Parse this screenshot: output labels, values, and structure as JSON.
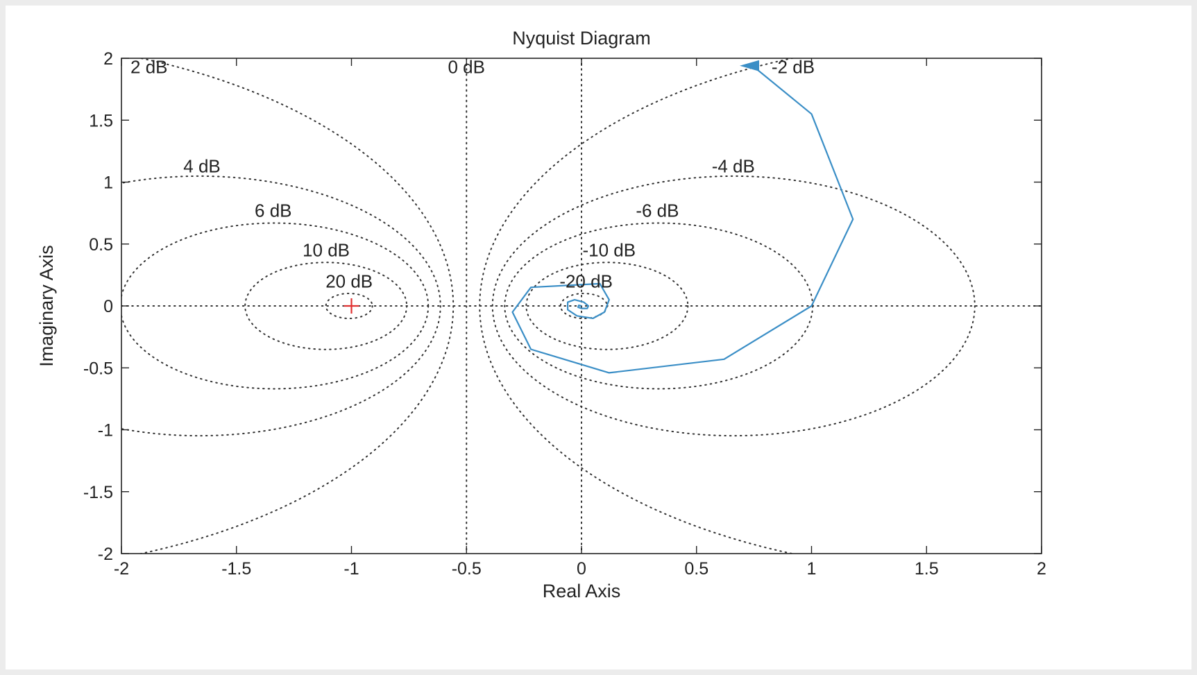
{
  "chart_data": {
    "type": "line",
    "subtype": "nyquist",
    "title": "Nyquist Diagram",
    "xlabel": "Real Axis",
    "ylabel": "Imaginary Axis",
    "xlim": [
      -2,
      2
    ],
    "ylim": [
      -2,
      2
    ],
    "xticks": [
      -2,
      -1.5,
      -1,
      -0.5,
      0,
      0.5,
      1,
      1.5,
      2
    ],
    "yticks": [
      -2,
      -1.5,
      -1,
      -0.5,
      0,
      0.5,
      1,
      1.5,
      2
    ],
    "xtick_labels": [
      "-2",
      "-1.5",
      "-1",
      "-0.5",
      "0",
      "0.5",
      "1",
      "1.5",
      "2"
    ],
    "ytick_labels": [
      "-2",
      "-1.5",
      "-1",
      "-0.5",
      "0",
      "0.5",
      "1",
      "1.5",
      "2"
    ],
    "grid": "M-circles (dotted)",
    "critical_point": {
      "x": -1,
      "y": 0,
      "marker": "+",
      "color": "#e03030"
    },
    "mcircles": [
      {
        "db": 2,
        "label": "2 dB",
        "label_x": -1.88,
        "label_y": 1.93
      },
      {
        "db": 0,
        "label": "0 dB",
        "label_x": -0.5,
        "label_y": 1.93
      },
      {
        "db": -2,
        "label": "-2 dB",
        "label_x": 0.92,
        "label_y": 1.93
      },
      {
        "db": 4,
        "label": "4 dB",
        "label_x": -1.65,
        "label_y": 1.13
      },
      {
        "db": -4,
        "label": "-4 dB",
        "label_x": 0.66,
        "label_y": 1.13
      },
      {
        "db": 6,
        "label": "6 dB",
        "label_x": -1.34,
        "label_y": 0.77
      },
      {
        "db": -6,
        "label": "-6 dB",
        "label_x": 0.33,
        "label_y": 0.77
      },
      {
        "db": 10,
        "label": "10 dB",
        "label_x": -1.11,
        "label_y": 0.45
      },
      {
        "db": -10,
        "label": "-10 dB",
        "label_x": 0.12,
        "label_y": 0.45
      },
      {
        "db": 20,
        "label": "20 dB",
        "label_x": -1.01,
        "label_y": 0.2
      },
      {
        "db": -20,
        "label": "-20 dB",
        "label_x": 0.02,
        "label_y": 0.2
      }
    ],
    "series": [
      {
        "color": "#3a8ec6",
        "x": [
          0.72,
          0.75,
          1.0,
          1.18,
          1.0,
          0.62,
          0.12,
          -0.22,
          -0.3,
          -0.22,
          0.08,
          0.12,
          0.1,
          0.05,
          -0.02,
          -0.06,
          -0.06,
          -0.03,
          0.01,
          0.03,
          0.025,
          0.0,
          -0.015,
          -0.012,
          0.0
        ],
        "y": [
          1.94,
          1.93,
          1.55,
          0.7,
          0.0,
          -0.43,
          -0.54,
          -0.35,
          -0.05,
          0.15,
          0.18,
          0.05,
          -0.05,
          -0.1,
          -0.08,
          -0.03,
          0.03,
          0.05,
          0.03,
          0.0,
          -0.02,
          -0.02,
          -0.01,
          0.005,
          0.0
        ]
      }
    ],
    "arrow": {
      "x": 0.73,
      "y": 1.94,
      "direction": "left"
    }
  }
}
